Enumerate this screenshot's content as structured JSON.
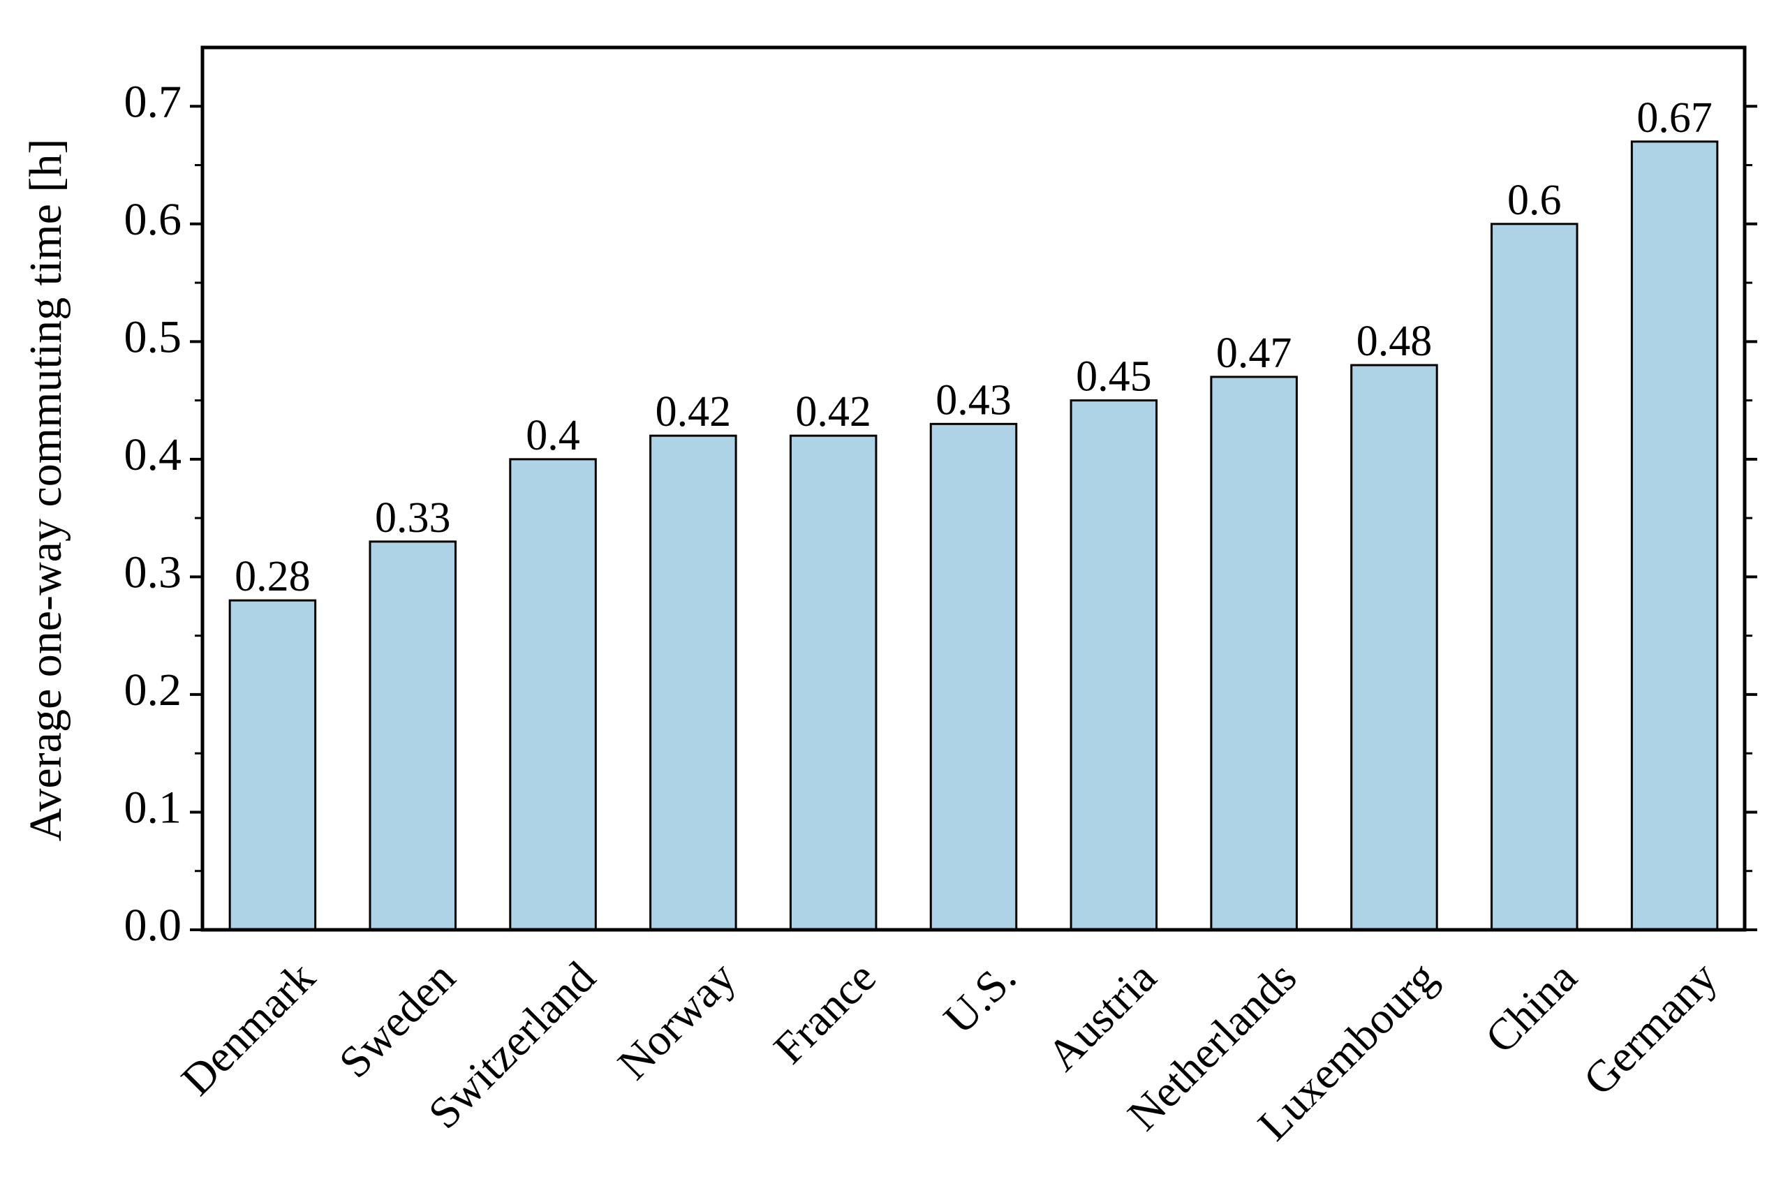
{
  "chart_data": {
    "type": "bar",
    "y_label": "Average one-way commuting time [h]",
    "categories": [
      "Denmark",
      "Sweden",
      "Switzerland",
      "Norway",
      "France",
      "U.S.",
      "Austria",
      "Netherlands",
      "Luxembourg",
      "China",
      "Germany"
    ],
    "values": [
      0.28,
      0.33,
      0.4,
      0.42,
      0.42,
      0.43,
      0.45,
      0.47,
      0.48,
      0.6,
      0.67
    ],
    "color": "#aed3e6",
    "ylim": [
      0,
      0.75
    ],
    "yticks": [
      {
        "value": 0,
        "label": "0.0"
      },
      0.1,
      0.2,
      0.3,
      0.4,
      0.5,
      0.6,
      0.7
    ],
    "grid": false
  }
}
